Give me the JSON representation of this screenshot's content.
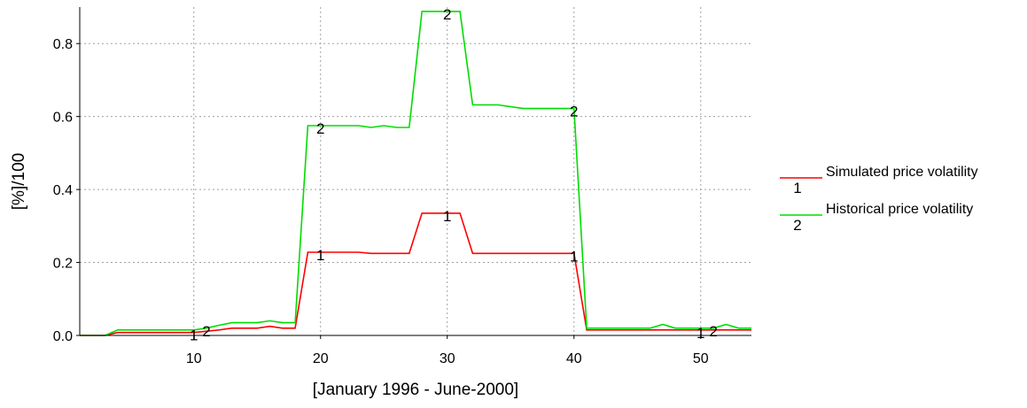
{
  "chart_data": {
    "type": "line",
    "title": "",
    "xlabel": "[January 1996 - June-2000]",
    "ylabel": "[%]/100",
    "xlim": [
      1,
      54
    ],
    "ylim": [
      0,
      0.9
    ],
    "x_ticks": [
      "10",
      "20",
      "30",
      "40",
      "50"
    ],
    "y_ticks": [
      "0.0",
      "0.2",
      "0.4",
      "0.6",
      "0.8"
    ],
    "grid": true,
    "legend_position": "right",
    "series": [
      {
        "name": "Simulated price volatility",
        "marker_label": "1",
        "color": "#ff0000",
        "marker_x": [
          10,
          20,
          30,
          40,
          50
        ],
        "points": [
          [
            1,
            0
          ],
          [
            3,
            0
          ],
          [
            4,
            0.008
          ],
          [
            10,
            0.008
          ],
          [
            12,
            0.015
          ],
          [
            13,
            0.02
          ],
          [
            15,
            0.02
          ],
          [
            16,
            0.025
          ],
          [
            17,
            0.02
          ],
          [
            18,
            0.02
          ],
          [
            19,
            0.228
          ],
          [
            23,
            0.228
          ],
          [
            24,
            0.225
          ],
          [
            27,
            0.225
          ],
          [
            28,
            0.335
          ],
          [
            31,
            0.335
          ],
          [
            32,
            0.225
          ],
          [
            40,
            0.225
          ],
          [
            41,
            0.015
          ],
          [
            54,
            0.015
          ]
        ]
      },
      {
        "name": "Historical price volatility",
        "marker_label": "2",
        "color": "#00dd00",
        "marker_x": [
          11,
          20,
          30,
          40,
          51
        ],
        "points": [
          [
            1,
            0
          ],
          [
            3,
            0
          ],
          [
            4,
            0.015
          ],
          [
            10,
            0.015
          ],
          [
            11,
            0.02
          ],
          [
            12,
            0.028
          ],
          [
            13,
            0.035
          ],
          [
            15,
            0.035
          ],
          [
            16,
            0.04
          ],
          [
            17,
            0.035
          ],
          [
            18,
            0.035
          ],
          [
            19,
            0.575
          ],
          [
            23,
            0.575
          ],
          [
            24,
            0.57
          ],
          [
            25,
            0.575
          ],
          [
            26,
            0.57
          ],
          [
            27,
            0.57
          ],
          [
            28,
            0.888
          ],
          [
            31,
            0.888
          ],
          [
            32,
            0.632
          ],
          [
            34,
            0.632
          ],
          [
            36,
            0.622
          ],
          [
            40,
            0.622
          ],
          [
            41,
            0.02
          ],
          [
            46,
            0.02
          ],
          [
            47,
            0.03
          ],
          [
            48,
            0.02
          ],
          [
            51,
            0.02
          ],
          [
            52,
            0.03
          ],
          [
            53,
            0.02
          ],
          [
            54,
            0.02
          ]
        ]
      }
    ]
  }
}
